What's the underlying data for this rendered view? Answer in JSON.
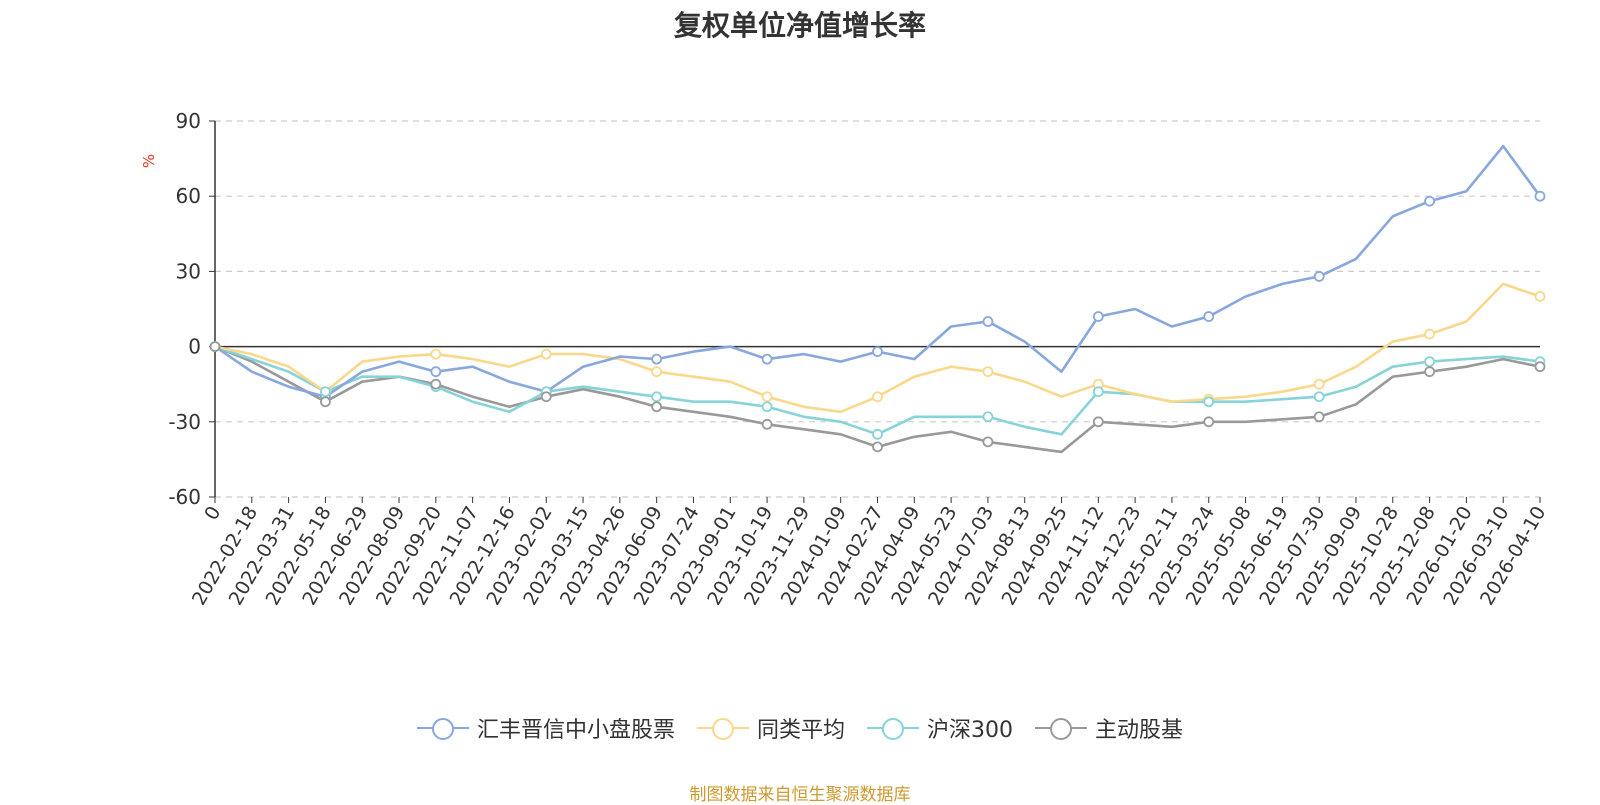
{
  "chart_data": {
    "type": "line",
    "title": "复权单位净值增长率",
    "ylabel": "%",
    "xlabel": "",
    "ylim": [
      -60,
      90
    ],
    "yticks": [
      90,
      60,
      30,
      0,
      -30,
      -60
    ],
    "grid": true,
    "legend_position": "bottom",
    "categories": [
      "0",
      "2022-02-18",
      "2022-03-31",
      "2022-05-18",
      "2022-06-29",
      "2022-08-09",
      "2022-09-20",
      "2022-11-07",
      "2022-12-16",
      "2023-02-02",
      "2023-03-15",
      "2023-04-26",
      "2023-06-09",
      "2023-07-24",
      "2023-09-01",
      "2023-10-19",
      "2023-11-29",
      "2024-01-09",
      "2024-02-27",
      "2024-04-09",
      "2024-05-23",
      "2024-07-03",
      "2024-08-13",
      "2024-09-25",
      "2024-11-12",
      "2024-12-23",
      "2025-02-11",
      "2025-03-24",
      "2025-05-08",
      "2025-06-19",
      "2025-07-30",
      "2025-09-09",
      "2025-10-28",
      "2025-12-08",
      "2026-01-20",
      "2026-03-10",
      "2026-04-10"
    ],
    "series": [
      {
        "name": "汇丰晋信中小盘股票",
        "color": "#88a7dd",
        "values": [
          0,
          -10,
          -16,
          -20,
          -10,
          -6,
          -10,
          -8,
          -14,
          -18,
          -8,
          -4,
          -5,
          -2,
          0,
          -5,
          -3,
          -6,
          -2,
          -5,
          8,
          10,
          2,
          -10,
          12,
          15,
          8,
          12,
          20,
          25,
          28,
          35,
          52,
          58,
          62,
          80,
          60
        ]
      },
      {
        "name": "同类平均",
        "color": "#fad88b",
        "values": [
          0,
          -3,
          -8,
          -18,
          -6,
          -4,
          -3,
          -5,
          -8,
          -3,
          -3,
          -5,
          -10,
          -12,
          -14,
          -20,
          -24,
          -26,
          -20,
          -12,
          -8,
          -10,
          -14,
          -20,
          -15,
          -19,
          -22,
          -21,
          -20,
          -18,
          -15,
          -8,
          2,
          5,
          10,
          25,
          20
        ]
      },
      {
        "name": "沪深300",
        "color": "#86d3d8",
        "values": [
          0,
          -5,
          -10,
          -18,
          -12,
          -12,
          -16,
          -22,
          -26,
          -18,
          -16,
          -18,
          -20,
          -22,
          -22,
          -24,
          -28,
          -30,
          -35,
          -28,
          -28,
          -28,
          -32,
          -35,
          -18,
          -19,
          -22,
          -22,
          -22,
          -21,
          -20,
          -16,
          -8,
          -6,
          -5,
          -4,
          -6
        ]
      },
      {
        "name": "主动股基",
        "color": "#999999",
        "values": [
          0,
          -6,
          -14,
          -22,
          -14,
          -12,
          -15,
          -20,
          -24,
          -20,
          -17,
          -20,
          -24,
          -26,
          -28,
          -31,
          -33,
          -35,
          -40,
          -36,
          -34,
          -38,
          -40,
          -42,
          -30,
          -31,
          -32,
          -30,
          -30,
          -29,
          -28,
          -23,
          -12,
          -10,
          -8,
          -5,
          -8
        ]
      }
    ]
  },
  "source_text": "制图数据来自恒生聚源数据库"
}
